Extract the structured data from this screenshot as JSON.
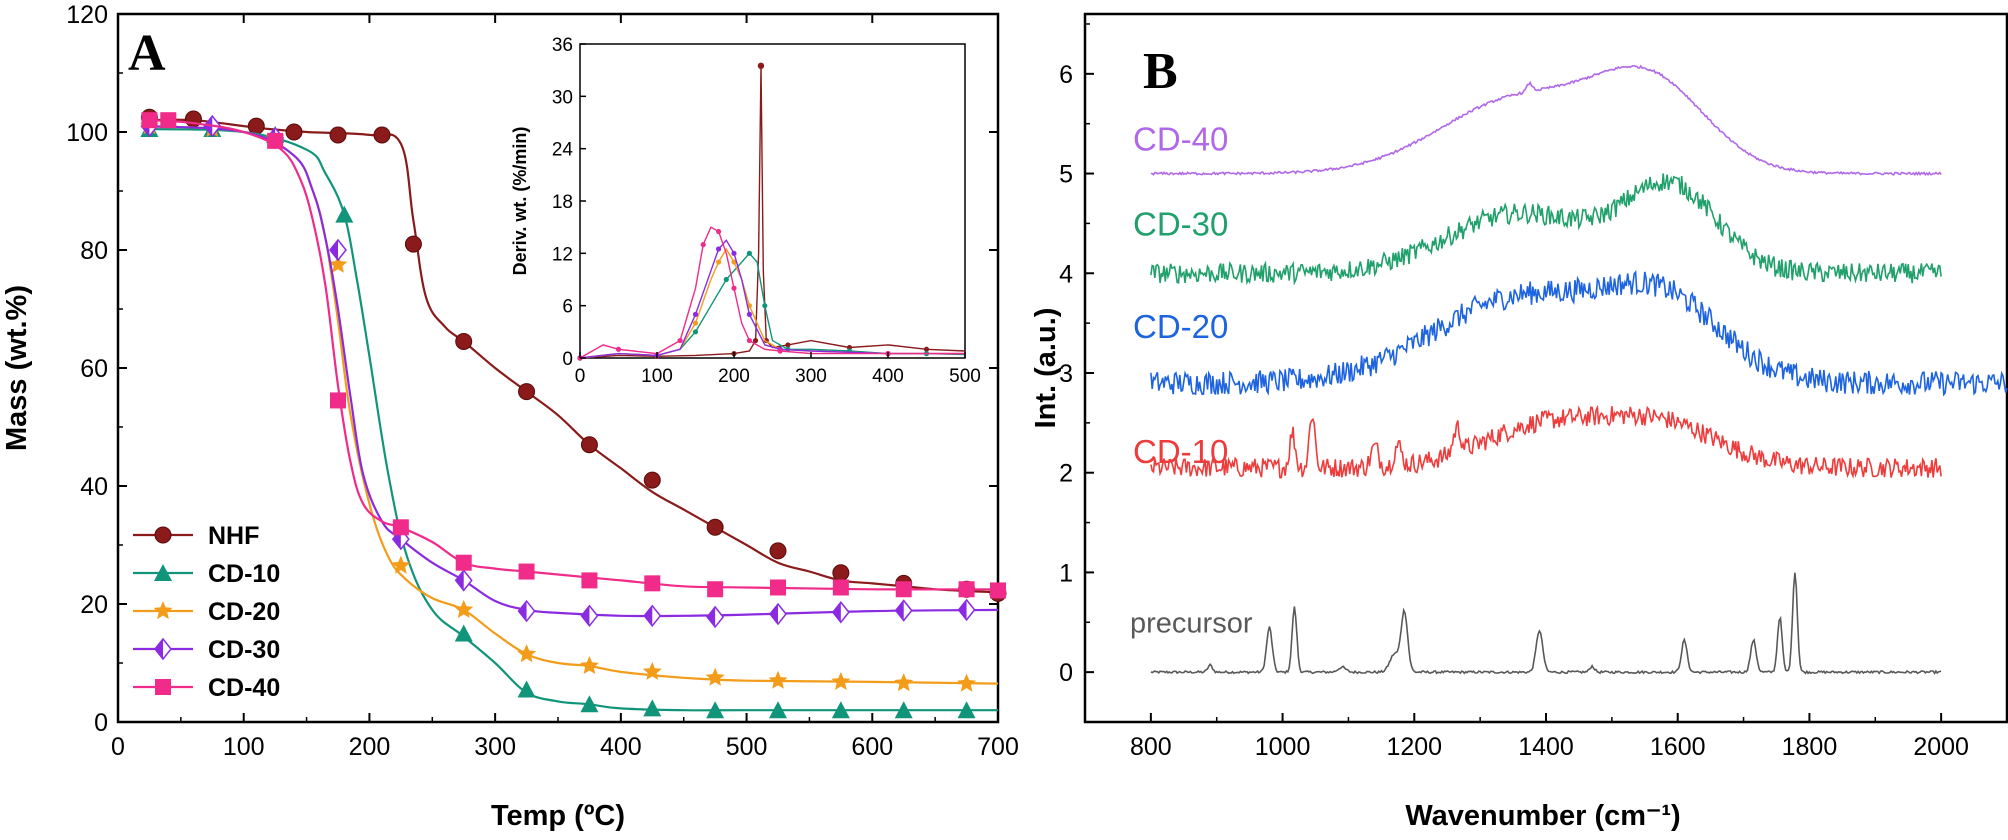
{
  "chart_data": [
    {
      "panel": "A",
      "type": "line",
      "xlabel": "Temp (ºC)",
      "ylabel": "Mass (wt.%)",
      "xlim": [
        0,
        700
      ],
      "ylim": [
        0,
        120
      ],
      "x_ticks": [
        "0",
        "100",
        "200",
        "300",
        "400",
        "500",
        "600",
        "700"
      ],
      "y_ticks": [
        "0",
        "20",
        "40",
        "60",
        "80",
        "100",
        "120"
      ],
      "legend_position": "bottom-left",
      "series": [
        {
          "name": "NHF",
          "color": "#8B1A1A",
          "marker": "circle",
          "x": [
            25,
            60,
            100,
            120,
            150,
            200,
            225,
            235,
            245,
            260,
            275,
            300,
            325,
            350,
            375,
            400,
            425,
            450,
            475,
            500,
            525,
            550,
            575,
            600,
            625,
            650,
            675,
            700
          ],
          "y": [
            102,
            102,
            101,
            100.5,
            100,
            99.5,
            98,
            85,
            72,
            67,
            64.5,
            60,
            56,
            52,
            47,
            43,
            39,
            36,
            33,
            30,
            27,
            25.5,
            24,
            23.5,
            23,
            22.5,
            22.2,
            22
          ],
          "markers_x": [
            25,
            60,
            110,
            140,
            175,
            210,
            235,
            275,
            325,
            375,
            425,
            475,
            525,
            575,
            625,
            675,
            700
          ],
          "markers_y": [
            102.5,
            102.2,
            101,
            100,
            99.5,
            99.5,
            81,
            64.5,
            56,
            47,
            41,
            33,
            29,
            25.3,
            23.5,
            22.5,
            21.8
          ]
        },
        {
          "name": "CD-10",
          "color": "#10957A",
          "marker": "triangle",
          "x": [
            25,
            100,
            150,
            165,
            180,
            190,
            200,
            215,
            230,
            250,
            275,
            300,
            325,
            350,
            375,
            400,
            450,
            500,
            600,
            700
          ],
          "y": [
            100.5,
            100,
            97,
            93,
            86,
            75,
            62,
            42,
            28,
            19,
            14.5,
            10,
            5,
            3.5,
            3,
            2.3,
            2,
            2,
            2,
            2
          ],
          "markers_x": [
            25,
            75,
            125,
            180,
            275,
            325,
            375,
            425,
            475,
            525,
            575,
            625,
            675
          ],
          "markers_y": [
            100.5,
            100.5,
            99.5,
            86,
            15,
            5.5,
            3,
            2.3,
            2,
            2,
            2,
            2,
            2
          ]
        },
        {
          "name": "CD-20",
          "color": "#F39C1A",
          "marker": "star",
          "x": [
            25,
            100,
            140,
            155,
            165,
            175,
            185,
            200,
            215,
            230,
            250,
            275,
            300,
            325,
            350,
            375,
            400,
            450,
            500,
            600,
            700
          ],
          "y": [
            101,
            100,
            96,
            90,
            82,
            68,
            52,
            37,
            28,
            24,
            21,
            19,
            15,
            11.5,
            10,
            9.5,
            8.5,
            7.5,
            7,
            6.8,
            6.5
          ],
          "markers_x": [
            25,
            75,
            125,
            175,
            225,
            275,
            325,
            375,
            425,
            475,
            525,
            575,
            625,
            675
          ],
          "markers_y": [
            101,
            100.5,
            99,
            77.5,
            26.5,
            19,
            11.5,
            9.5,
            8.5,
            7.5,
            7,
            6.8,
            6.6,
            6.5
          ]
        },
        {
          "name": "CD-30",
          "color": "#8A2BE2",
          "marker": "diamond",
          "x": [
            25,
            100,
            140,
            155,
            165,
            175,
            185,
            195,
            210,
            225,
            250,
            275,
            300,
            325,
            350,
            400,
            450,
            500,
            600,
            700
          ],
          "y": [
            101,
            100,
            96,
            90,
            82,
            70,
            55,
            42,
            34,
            31,
            27,
            24,
            20.5,
            19,
            18.5,
            18,
            18,
            18.2,
            18.8,
            19
          ],
          "markers_x": [
            25,
            75,
            125,
            175,
            225,
            275,
            325,
            375,
            425,
            475,
            525,
            575,
            625,
            675
          ],
          "markers_y": [
            101,
            101,
            99,
            80,
            31,
            24,
            18.8,
            18,
            18,
            17.8,
            18.3,
            18.6,
            18.9,
            19
          ]
        },
        {
          "name": "CD-40",
          "color": "#F02B8A",
          "marker": "square",
          "x": [
            25,
            60,
            100,
            130,
            145,
            155,
            165,
            175,
            185,
            195,
            210,
            225,
            250,
            275,
            300,
            325,
            350,
            400,
            450,
            500,
            600,
            700
          ],
          "y": [
            102,
            101.5,
            100,
            97,
            92,
            85,
            74,
            57,
            44,
            37,
            34,
            33,
            30.5,
            27,
            26,
            25.5,
            25,
            24,
            23,
            22.8,
            22.5,
            22.5
          ],
          "markers_x": [
            25,
            40,
            125,
            175,
            225,
            275,
            325,
            375,
            425,
            475,
            525,
            575,
            625,
            675,
            700
          ],
          "markers_y": [
            102,
            102,
            98.5,
            54.5,
            33,
            27,
            25.5,
            24,
            23.5,
            22.5,
            22.8,
            22.8,
            22.5,
            22.5,
            22.3
          ]
        }
      ],
      "inset": {
        "type": "line",
        "ylabel": "Deriv. wt. (%/min)",
        "xlim": [
          0,
          500
        ],
        "ylim": [
          0,
          36
        ],
        "x_ticks": [
          "0",
          "100",
          "200",
          "300",
          "400",
          "500"
        ],
        "y_ticks": [
          "0",
          "6",
          "12",
          "18",
          "24",
          "30",
          "36"
        ],
        "peak_label": "33.5",
        "series": [
          {
            "name": "NHF",
            "color": "#8B1A1A",
            "x": [
              0,
              50,
              100,
              150,
              200,
              220,
              228,
              232,
              235,
              238,
              242,
              250,
              270,
              300,
              350,
              400,
              450,
              500
            ],
            "y": [
              0,
              0.3,
              0.2,
              0.3,
              0.5,
              0.8,
              2,
              12,
              33.5,
              10,
              2,
              1.2,
              1.5,
              2,
              1.2,
              1.5,
              1,
              0.8
            ]
          },
          {
            "name": "CD-10",
            "color": "#10957A",
            "x": [
              0,
              50,
              100,
              130,
              150,
              170,
              190,
              210,
              220,
              230,
              240,
              250,
              270,
              300,
              350,
              400,
              450,
              500
            ],
            "y": [
              0,
              0.5,
              0.3,
              1,
              3,
              6,
              9,
              11,
              12,
              11,
              6,
              2,
              1,
              1,
              0.8,
              0.5,
              0.5,
              0.4
            ]
          },
          {
            "name": "CD-20",
            "color": "#F39C1A",
            "x": [
              0,
              50,
              100,
              130,
              150,
              170,
              180,
              190,
              200,
              210,
              220,
              240,
              260,
              300,
              400,
              500
            ],
            "y": [
              0,
              0.5,
              0.3,
              1,
              4,
              9,
              11,
              12.5,
              11,
              9,
              6,
              2,
              1,
              0.8,
              0.5,
              0.5
            ]
          },
          {
            "name": "CD-30",
            "color": "#8A2BE2",
            "x": [
              0,
              50,
              100,
              130,
              150,
              170,
              180,
              190,
              200,
              210,
              220,
              240,
              260,
              300,
              400,
              500
            ],
            "y": [
              0,
              0.5,
              0.3,
              1,
              5,
              10,
              12.5,
              13.5,
              12,
              9,
              5,
              1.5,
              1,
              0.8,
              0.5,
              0.5
            ]
          },
          {
            "name": "CD-40",
            "color": "#F02B8A",
            "x": [
              0,
              30,
              50,
              100,
              130,
              150,
              160,
              170,
              180,
              190,
              200,
              210,
              220,
              240,
              260,
              300,
              400,
              500
            ],
            "y": [
              0,
              1.5,
              1,
              0.5,
              2,
              8,
              13,
              15,
              14.5,
              12,
              8,
              4,
              2,
              1,
              0.8,
              0.5,
              0.5,
              0.5
            ]
          }
        ]
      },
      "panel_label": "A"
    },
    {
      "panel": "B",
      "type": "line",
      "xlabel": "Wavenumber (cm⁻¹)",
      "ylabel": "Int. (a.u.)",
      "xlim": [
        700,
        2100
      ],
      "ylim": [
        -0.5,
        6.6
      ],
      "x_ticks": [
        "800",
        "1000",
        "1200",
        "1400",
        "1600",
        "1800",
        "2000"
      ],
      "y_ticks": [
        "0",
        "1",
        "2",
        "3",
        "4",
        "5",
        "6"
      ],
      "panel_label": "B",
      "series": [
        {
          "name": "precursor",
          "color": "#595959",
          "offset": 0,
          "noise": 0.012,
          "x_range": [
            800,
            2000
          ],
          "peaks": [
            [
              890,
              0.07,
              5
            ],
            [
              980,
              0.45,
              6
            ],
            [
              1018,
              0.65,
              5
            ],
            [
              1090,
              0.05,
              8
            ],
            [
              1170,
              0.18,
              10
            ],
            [
              1185,
              0.6,
              7
            ],
            [
              1390,
              0.42,
              7
            ],
            [
              1470,
              0.06,
              5
            ],
            [
              1610,
              0.32,
              6
            ],
            [
              1715,
              0.32,
              6
            ],
            [
              1755,
              0.55,
              5
            ],
            [
              1778,
              1.0,
              5
            ]
          ],
          "bumps": []
        },
        {
          "name": "CD-10",
          "color": "#EE3B3B",
          "offset": 2.05,
          "noise": 0.1,
          "x_range": [
            800,
            2000
          ],
          "peaks": [
            [
              1015,
              0.35,
              6
            ],
            [
              1045,
              0.55,
              6
            ],
            [
              1140,
              0.2,
              8
            ],
            [
              1175,
              0.2,
              8
            ],
            [
              1265,
              0.25,
              8
            ]
          ],
          "bumps": [
            [
              1390,
              0.4,
              90
            ],
            [
              1570,
              0.45,
              90
            ]
          ]
        },
        {
          "name": "CD-20",
          "color": "#1E64E0",
          "offset": 2.9,
          "noise": 0.12,
          "x_range": [
            800,
            2100
          ],
          "peaks": [],
          "bumps": [
            [
              1360,
              0.85,
              130
            ],
            [
              1580,
              0.75,
              90
            ]
          ]
        },
        {
          "name": "CD-30",
          "color": "#20A06A",
          "offset": 4.0,
          "noise": 0.1,
          "x_range": [
            800,
            2000
          ],
          "peaks": [],
          "bumps": [
            [
              1360,
              0.6,
              110
            ],
            [
              1590,
              0.85,
              70
            ]
          ]
        },
        {
          "name": "CD-40",
          "color": "#B068E8",
          "offset": 5.0,
          "noise": 0.012,
          "x_range": [
            800,
            2000
          ],
          "peaks": [
            [
              1375,
              0.08,
              6
            ]
          ],
          "bumps": [
            [
              1360,
              0.75,
              120
            ],
            [
              1560,
              0.85,
              85
            ]
          ]
        }
      ]
    }
  ]
}
